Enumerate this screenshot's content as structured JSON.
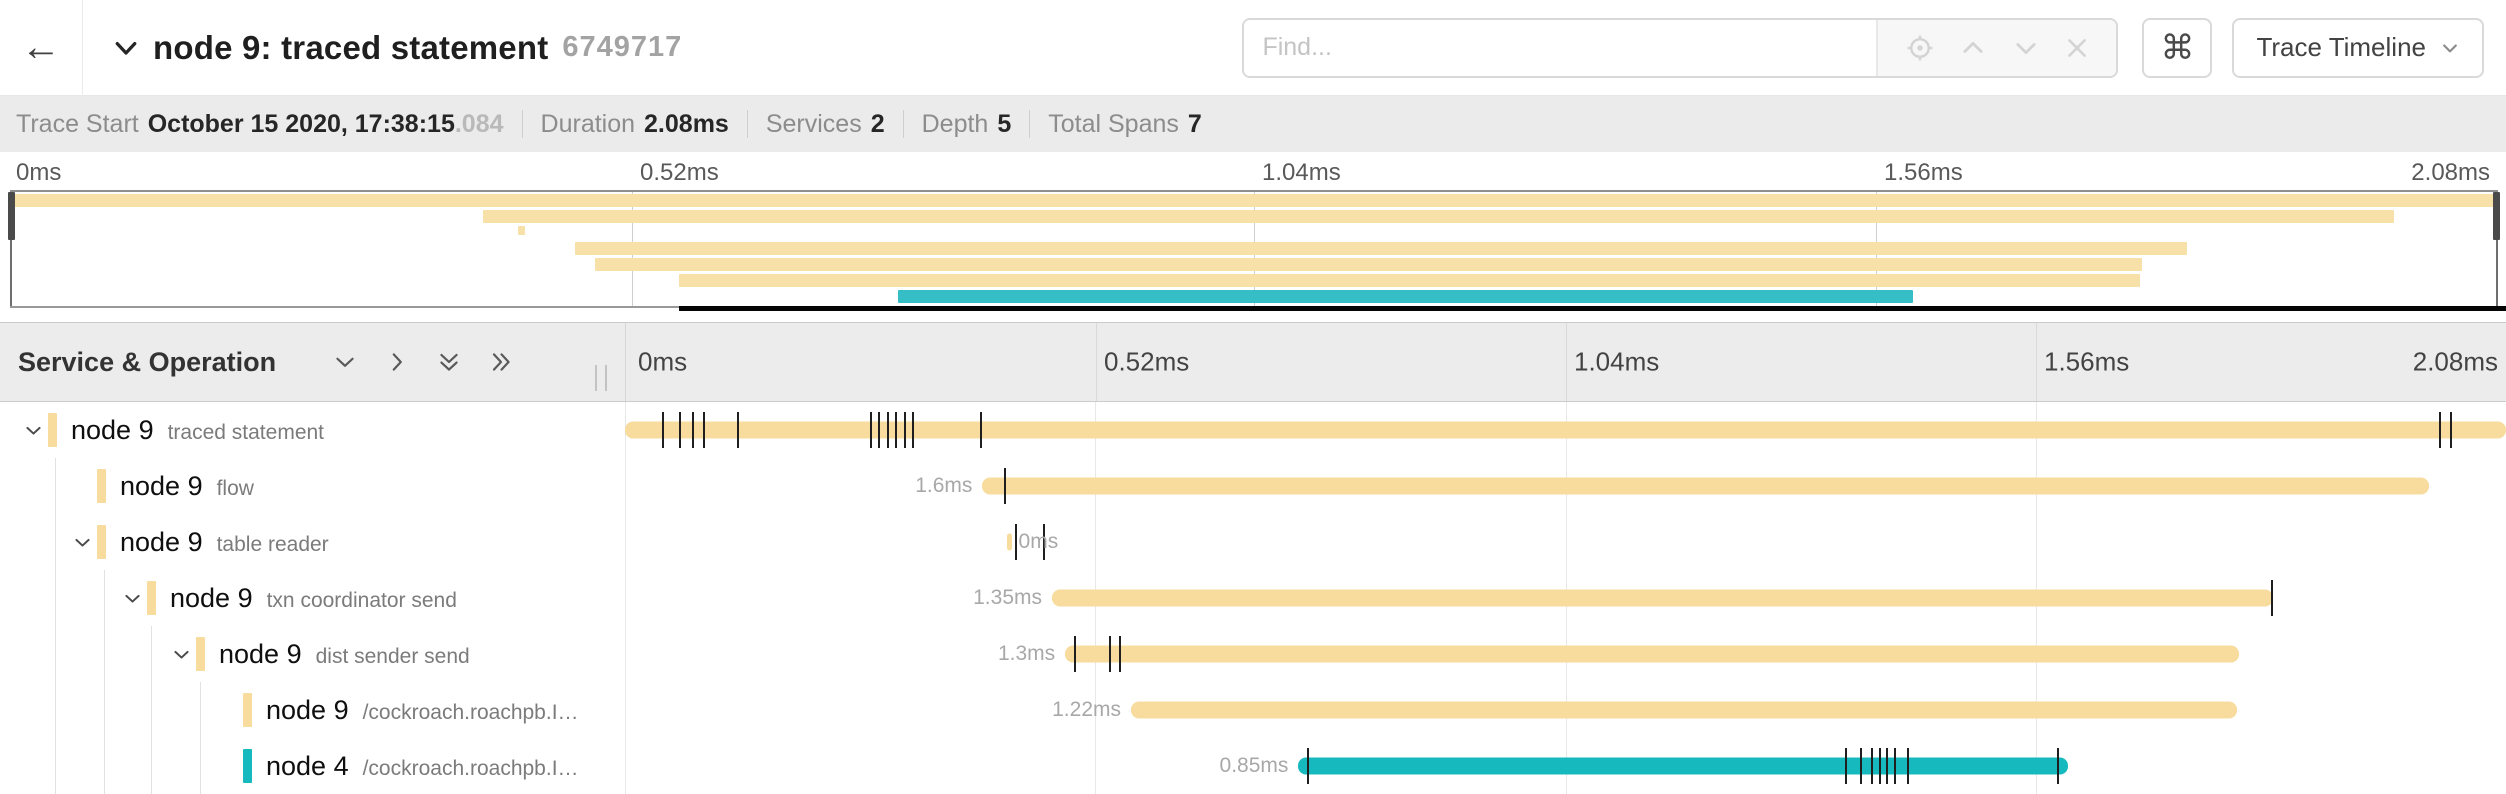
{
  "header": {
    "back_glyph": "←",
    "title": "node 9: traced statement",
    "trace_id_short": "6749717",
    "find_placeholder": "Find...",
    "shortcut_glyph": "⌘",
    "view_selector_label": "Trace Timeline"
  },
  "trace_info": {
    "items": [
      {
        "label": "Trace Start",
        "value": "October 15 2020, 17:38:15",
        "suffix": ".084"
      },
      {
        "label": "Duration",
        "value": "2.08ms",
        "suffix": ""
      },
      {
        "label": "Services",
        "value": "2",
        "suffix": ""
      },
      {
        "label": "Depth",
        "value": "5",
        "suffix": ""
      },
      {
        "label": "Total Spans",
        "value": "7",
        "suffix": ""
      }
    ]
  },
  "time_axis": {
    "ticks": [
      "0ms",
      "0.52ms",
      "1.04ms",
      "1.56ms",
      "2.08ms"
    ],
    "positions_pct": [
      0,
      25,
      50,
      75,
      100
    ]
  },
  "timeline": {
    "left_header": "Service & Operation",
    "colors": {
      "tan": "#f7dc9e",
      "teal": "#16b9be",
      "mini_tan": "#f8e1a8",
      "mini_teal": "#35bec6"
    },
    "spans": [
      {
        "service": "node 9",
        "operation": "traced statement",
        "depth": 0,
        "expandable": true,
        "color": "tan",
        "start_pct": 0,
        "width_pct": 100,
        "duration_label": "",
        "label_side": "none",
        "ticks_pct": [
          2.0,
          2.9,
          3.6,
          4.2,
          6.0,
          13.1,
          13.5,
          14.0,
          14.4,
          14.9,
          15.3,
          18.9,
          96.5,
          97.1
        ]
      },
      {
        "service": "node 9",
        "operation": "flow",
        "depth": 1,
        "expandable": false,
        "color": "tan",
        "start_pct": 19.0,
        "width_pct": 76.9,
        "duration_label": "1.6ms",
        "label_side": "left",
        "ticks_pct": [
          20.2
        ]
      },
      {
        "service": "node 9",
        "operation": "table reader",
        "depth": 1,
        "expandable": true,
        "color": "tan",
        "start_pct": 20.3,
        "width_pct": 0.25,
        "duration_label": "0ms",
        "label_side": "right",
        "ticks_pct": [
          20.8,
          22.25
        ]
      },
      {
        "service": "node 9",
        "operation": "txn coordinator send",
        "depth": 2,
        "expandable": true,
        "color": "tan",
        "start_pct": 22.7,
        "width_pct": 64.9,
        "duration_label": "1.35ms",
        "label_side": "left",
        "ticks_pct": [
          87.55
        ]
      },
      {
        "service": "node 9",
        "operation": "dist sender send",
        "depth": 3,
        "expandable": true,
        "color": "tan",
        "start_pct": 23.4,
        "width_pct": 62.4,
        "duration_label": "1.3ms",
        "label_side": "left",
        "ticks_pct": [
          23.95,
          25.8,
          26.3
        ]
      },
      {
        "service": "node 9",
        "operation": "/cockroach.roachpb.I…",
        "depth": 4,
        "expandable": false,
        "color": "tan",
        "start_pct": 26.9,
        "width_pct": 58.8,
        "duration_label": "1.22ms",
        "label_side": "left",
        "ticks_pct": []
      },
      {
        "service": "node 4",
        "operation": "/cockroach.roachpb.I…",
        "depth": 4,
        "expandable": false,
        "color": "teal",
        "start_pct": 35.8,
        "width_pct": 40.9,
        "duration_label": "0.85ms",
        "label_side": "left",
        "ticks_pct": [
          36.3,
          64.9,
          65.7,
          66.3,
          66.7,
          67.1,
          67.5,
          68.2,
          76.2
        ]
      }
    ]
  },
  "minimap": {
    "rows": [
      {
        "color": "mini_tan",
        "start_pct": 0,
        "width_pct": 100,
        "small": false
      },
      {
        "color": "mini_tan",
        "start_pct": 19.0,
        "width_pct": 76.8,
        "small": false
      },
      {
        "color": "mini_tan",
        "start_pct": 20.4,
        "width_pct": 0.3,
        "small": true
      },
      {
        "color": "mini_tan",
        "start_pct": 22.7,
        "width_pct": 64.8,
        "small": false
      },
      {
        "color": "mini_tan",
        "start_pct": 23.5,
        "width_pct": 62.2,
        "small": false
      },
      {
        "color": "mini_tan",
        "start_pct": 26.9,
        "width_pct": 58.7,
        "small": false
      },
      {
        "color": "mini_teal",
        "start_pct": 35.7,
        "width_pct": 40.8,
        "small": false
      }
    ],
    "black_track_start_pct": 26.9
  }
}
